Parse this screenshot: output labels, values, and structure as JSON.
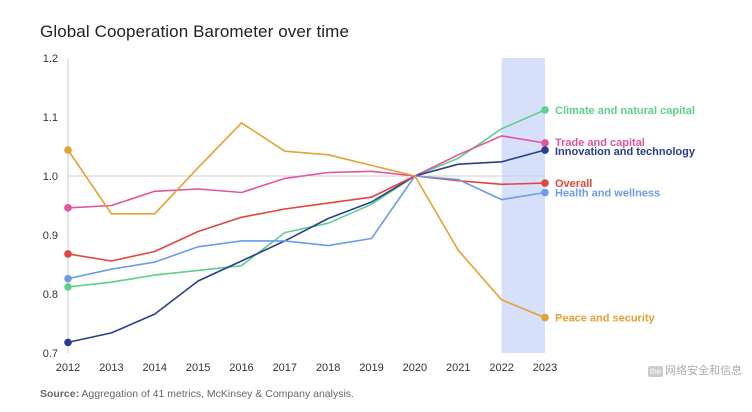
{
  "chart_data": {
    "type": "line",
    "title": "Global Cooperation Barometer over time",
    "xlabel": "",
    "ylabel": "",
    "x": [
      "2012",
      "2013",
      "2014",
      "2015",
      "2016",
      "2017",
      "2018",
      "2019",
      "2020",
      "2021",
      "2022",
      "2023"
    ],
    "ylim": [
      0.7,
      1.2
    ],
    "yticks": [
      "0.7",
      "0.8",
      "0.9",
      "1.0",
      "1.1",
      "1.2"
    ],
    "reference_line": 1.0,
    "highlight_band": [
      "2022",
      "2023"
    ],
    "grid": false,
    "legend": "direct labels at line ends, right",
    "series": [
      {
        "name": "Climate and natural capital",
        "color": "#5ecf8e",
        "values": [
          0.812,
          0.82,
          0.832,
          0.84,
          0.848,
          0.904,
          0.92,
          0.952,
          1.0,
          1.03,
          1.08,
          1.112
        ]
      },
      {
        "name": "Trade and capital",
        "color": "#e0559e",
        "values": [
          0.946,
          0.95,
          0.974,
          0.978,
          0.972,
          0.996,
          1.006,
          1.008,
          1.0,
          1.036,
          1.068,
          1.056
        ]
      },
      {
        "name": "Innovation and technology",
        "color": "#2a3d8f",
        "values": [
          0.718,
          0.734,
          0.766,
          0.822,
          0.856,
          0.89,
          0.928,
          0.956,
          1.0,
          1.02,
          1.024,
          1.044
        ]
      },
      {
        "name": "Overall",
        "color": "#e0463c",
        "values": [
          0.868,
          0.856,
          0.872,
          0.906,
          0.93,
          0.944,
          0.954,
          0.964,
          1.0,
          0.992,
          0.986,
          0.988
        ]
      },
      {
        "name": "Health and wellness",
        "color": "#6d9be8",
        "values": [
          0.826,
          0.842,
          0.854,
          0.88,
          0.89,
          0.89,
          0.882,
          0.894,
          1.0,
          0.994,
          0.96,
          0.972
        ]
      },
      {
        "name": "Peace and security",
        "color": "#e6a033",
        "values": [
          1.044,
          0.936,
          0.936,
          1.014,
          1.09,
          1.042,
          1.036,
          1.018,
          1.0,
          0.874,
          0.79,
          0.76
        ]
      }
    ]
  },
  "footer": {
    "source_label": "Source:",
    "source_text": " Aggregation of 41 metrics, McKinsey & Company analysis."
  },
  "watermark": {
    "badge": "the",
    "text": "网络安全和信息"
  }
}
